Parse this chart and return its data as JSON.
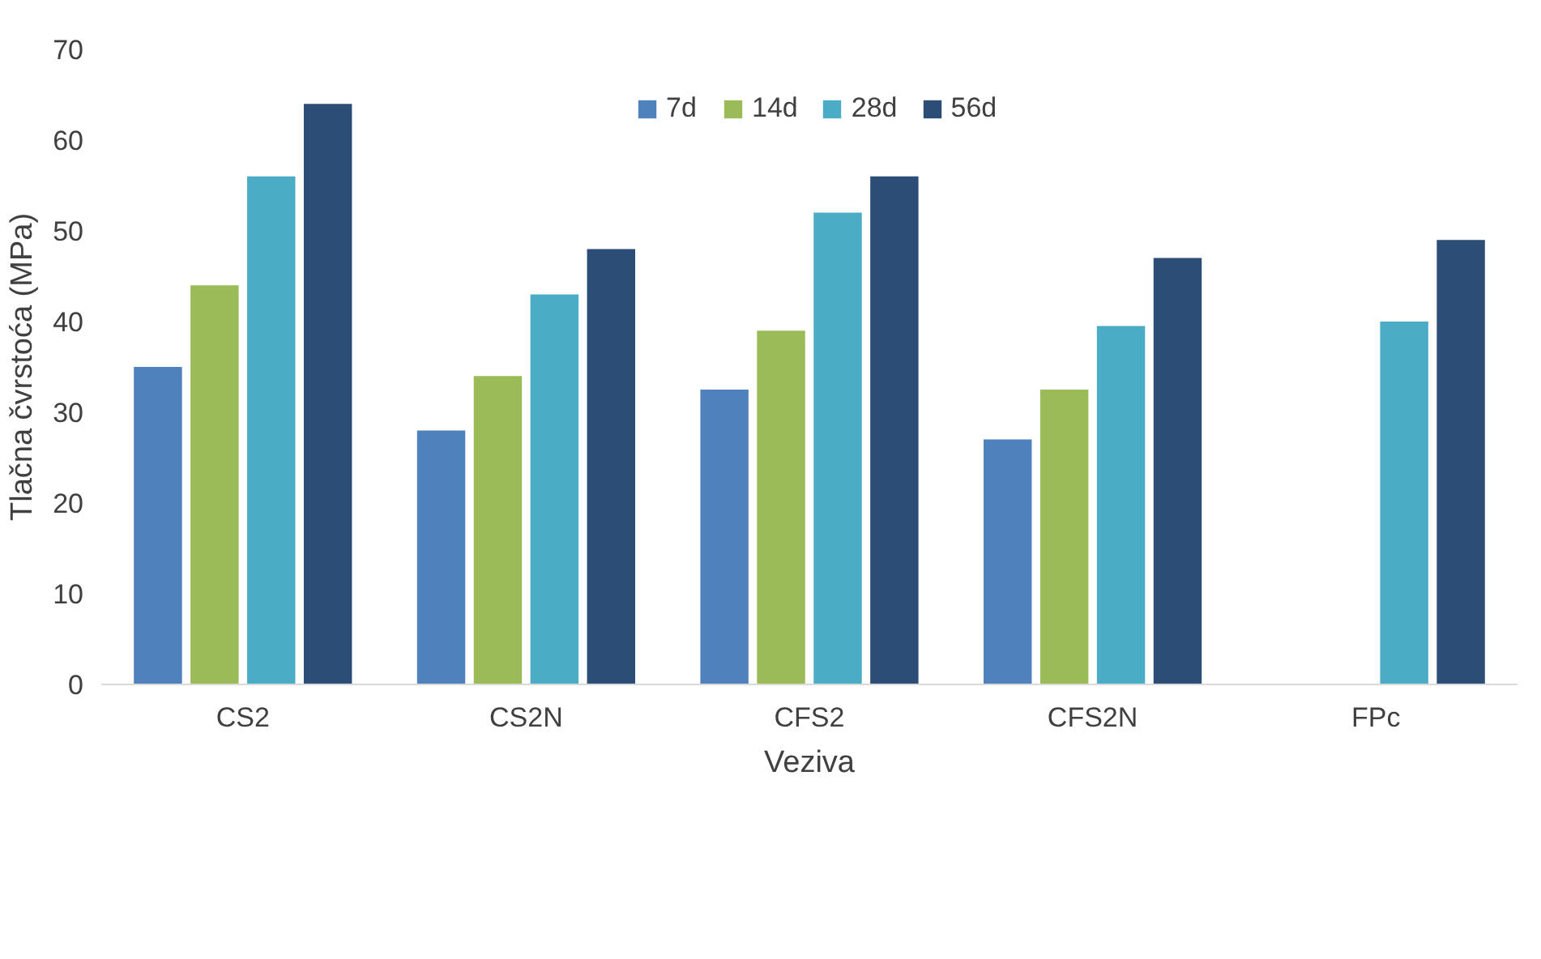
{
  "chart_data": {
    "type": "bar",
    "xlabel": "Veziva",
    "ylabel": "Tlačna čvrstoća (MPa)",
    "categories": [
      "CS2",
      "CS2N",
      "CFS2",
      "CFS2N",
      "FPc"
    ],
    "series": [
      {
        "name": "7d",
        "color": "#4f81bd",
        "values": [
          35,
          28,
          32.5,
          27,
          null
        ]
      },
      {
        "name": "14d",
        "color": "#9bbb59",
        "values": [
          44,
          34,
          39,
          32.5,
          null
        ]
      },
      {
        "name": "28d",
        "color": "#4bacc6",
        "values": [
          56,
          43,
          52,
          39.5,
          40
        ]
      },
      {
        "name": "56d",
        "color": "#2c4d75",
        "values": [
          64,
          48,
          56,
          47,
          49
        ]
      }
    ],
    "ylim": [
      0,
      70
    ],
    "yticks": [
      0,
      10,
      20,
      30,
      40,
      50,
      60,
      70
    ],
    "grid": false,
    "legend": "top right"
  }
}
